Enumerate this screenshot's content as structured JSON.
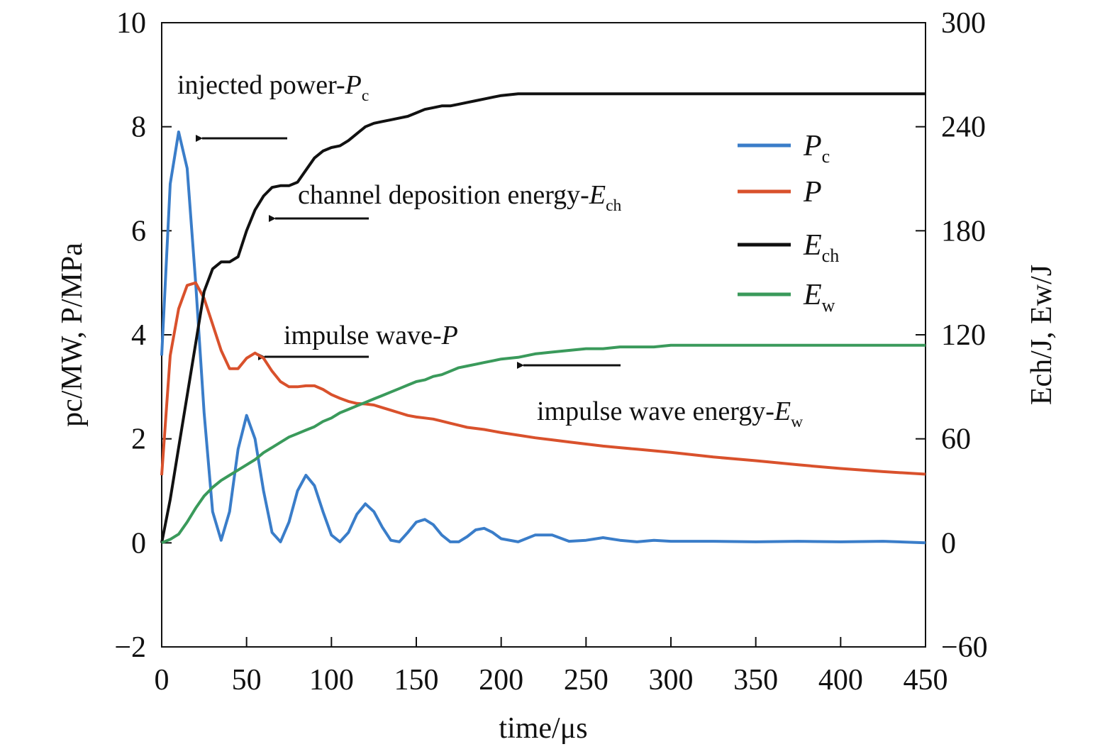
{
  "chart_data": {
    "type": "line",
    "x_label": "time/μs",
    "y_label": "pc/MW, P/MPa",
    "y2_label": "Ech/J, Ew/J",
    "x": [
      0,
      5,
      10,
      15,
      20,
      25,
      30,
      35,
      40,
      45,
      50,
      55,
      60,
      65,
      70,
      75,
      80,
      85,
      90,
      95,
      100,
      105,
      110,
      115,
      120,
      125,
      130,
      135,
      140,
      145,
      150,
      155,
      160,
      165,
      170,
      175,
      180,
      185,
      190,
      195,
      200,
      210,
      220,
      230,
      240,
      250,
      260,
      270,
      280,
      290,
      300,
      325,
      350,
      375,
      400,
      425,
      450
    ],
    "xlim": [
      0,
      450
    ],
    "xticks": [
      0,
      50,
      100,
      150,
      200,
      250,
      300,
      350,
      400,
      450
    ],
    "ylim": [
      -2,
      10
    ],
    "yticks": [
      {
        "value": -2,
        "label": "−2"
      },
      0,
      2,
      4,
      6,
      8,
      10
    ],
    "y2lim": [
      -60,
      300
    ],
    "y2ticks": [
      {
        "value": -60,
        "label": "−60"
      },
      0,
      60,
      120,
      180,
      240,
      300
    ],
    "legend": "upper right",
    "series": [
      {
        "name": "Pc",
        "color": "#3a7dc9",
        "axis": "y",
        "values": [
          3.6,
          6.9,
          7.9,
          7.2,
          5.0,
          2.5,
          0.6,
          0.05,
          0.6,
          1.8,
          2.45,
          2.0,
          1.0,
          0.2,
          0.02,
          0.4,
          1.0,
          1.3,
          1.1,
          0.6,
          0.15,
          0.02,
          0.2,
          0.55,
          0.75,
          0.6,
          0.3,
          0.05,
          0.02,
          0.2,
          0.4,
          0.45,
          0.35,
          0.15,
          0.02,
          0.02,
          0.12,
          0.25,
          0.28,
          0.2,
          0.08,
          0.02,
          0.15,
          0.15,
          0.03,
          0.05,
          0.1,
          0.05,
          0.02,
          0.05,
          0.03,
          0.03,
          0.02,
          0.03,
          0.02,
          0.03,
          0
        ]
      },
      {
        "name": "P",
        "color": "#d9512c",
        "axis": "y",
        "values": [
          1.3,
          3.6,
          4.5,
          4.95,
          5.0,
          4.7,
          4.2,
          3.7,
          3.35,
          3.35,
          3.55,
          3.65,
          3.55,
          3.3,
          3.1,
          3.0,
          3.0,
          3.02,
          3.02,
          2.95,
          2.85,
          2.78,
          2.72,
          2.68,
          2.67,
          2.65,
          2.6,
          2.55,
          2.5,
          2.45,
          2.42,
          2.4,
          2.38,
          2.34,
          2.3,
          2.26,
          2.22,
          2.2,
          2.18,
          2.15,
          2.12,
          2.07,
          2.02,
          1.98,
          1.94,
          1.9,
          1.86,
          1.83,
          1.8,
          1.77,
          1.74,
          1.65,
          1.58,
          1.5,
          1.43,
          1.37,
          1.32
        ]
      },
      {
        "name": "Ech",
        "color": "#111111",
        "axis": "y2",
        "values": [
          0,
          25,
          55,
          85,
          115,
          145,
          158,
          162,
          162,
          165,
          180,
          192,
          200,
          205,
          206,
          206,
          208,
          215,
          222,
          226,
          228,
          229,
          232,
          236,
          240,
          242,
          243,
          244,
          245,
          246,
          248,
          250,
          251,
          252,
          252,
          253,
          254,
          255,
          256,
          257,
          258,
          259,
          259,
          259,
          259,
          259,
          259,
          259,
          259,
          259,
          259,
          259,
          259,
          259,
          259,
          259,
          259
        ]
      },
      {
        "name": "Ew",
        "color": "#3a9a5b",
        "axis": "y2",
        "values": [
          0,
          2,
          5,
          12,
          20,
          27,
          32,
          36,
          39,
          42,
          45,
          48,
          52,
          55,
          58,
          61,
          63,
          65,
          67,
          70,
          72,
          75,
          77,
          79,
          81,
          83,
          85,
          87,
          89,
          91,
          93,
          94,
          96,
          97,
          99,
          101,
          102,
          103,
          104,
          105,
          106,
          107,
          109,
          110,
          111,
          112,
          112,
          113,
          113,
          113,
          114,
          114,
          114,
          114,
          114,
          114,
          114
        ]
      }
    ],
    "annotations": [
      "injected power-Pc",
      "channel deposition energy-Ech",
      "impulse wave-P",
      "impulse wave energy-Ew"
    ]
  }
}
